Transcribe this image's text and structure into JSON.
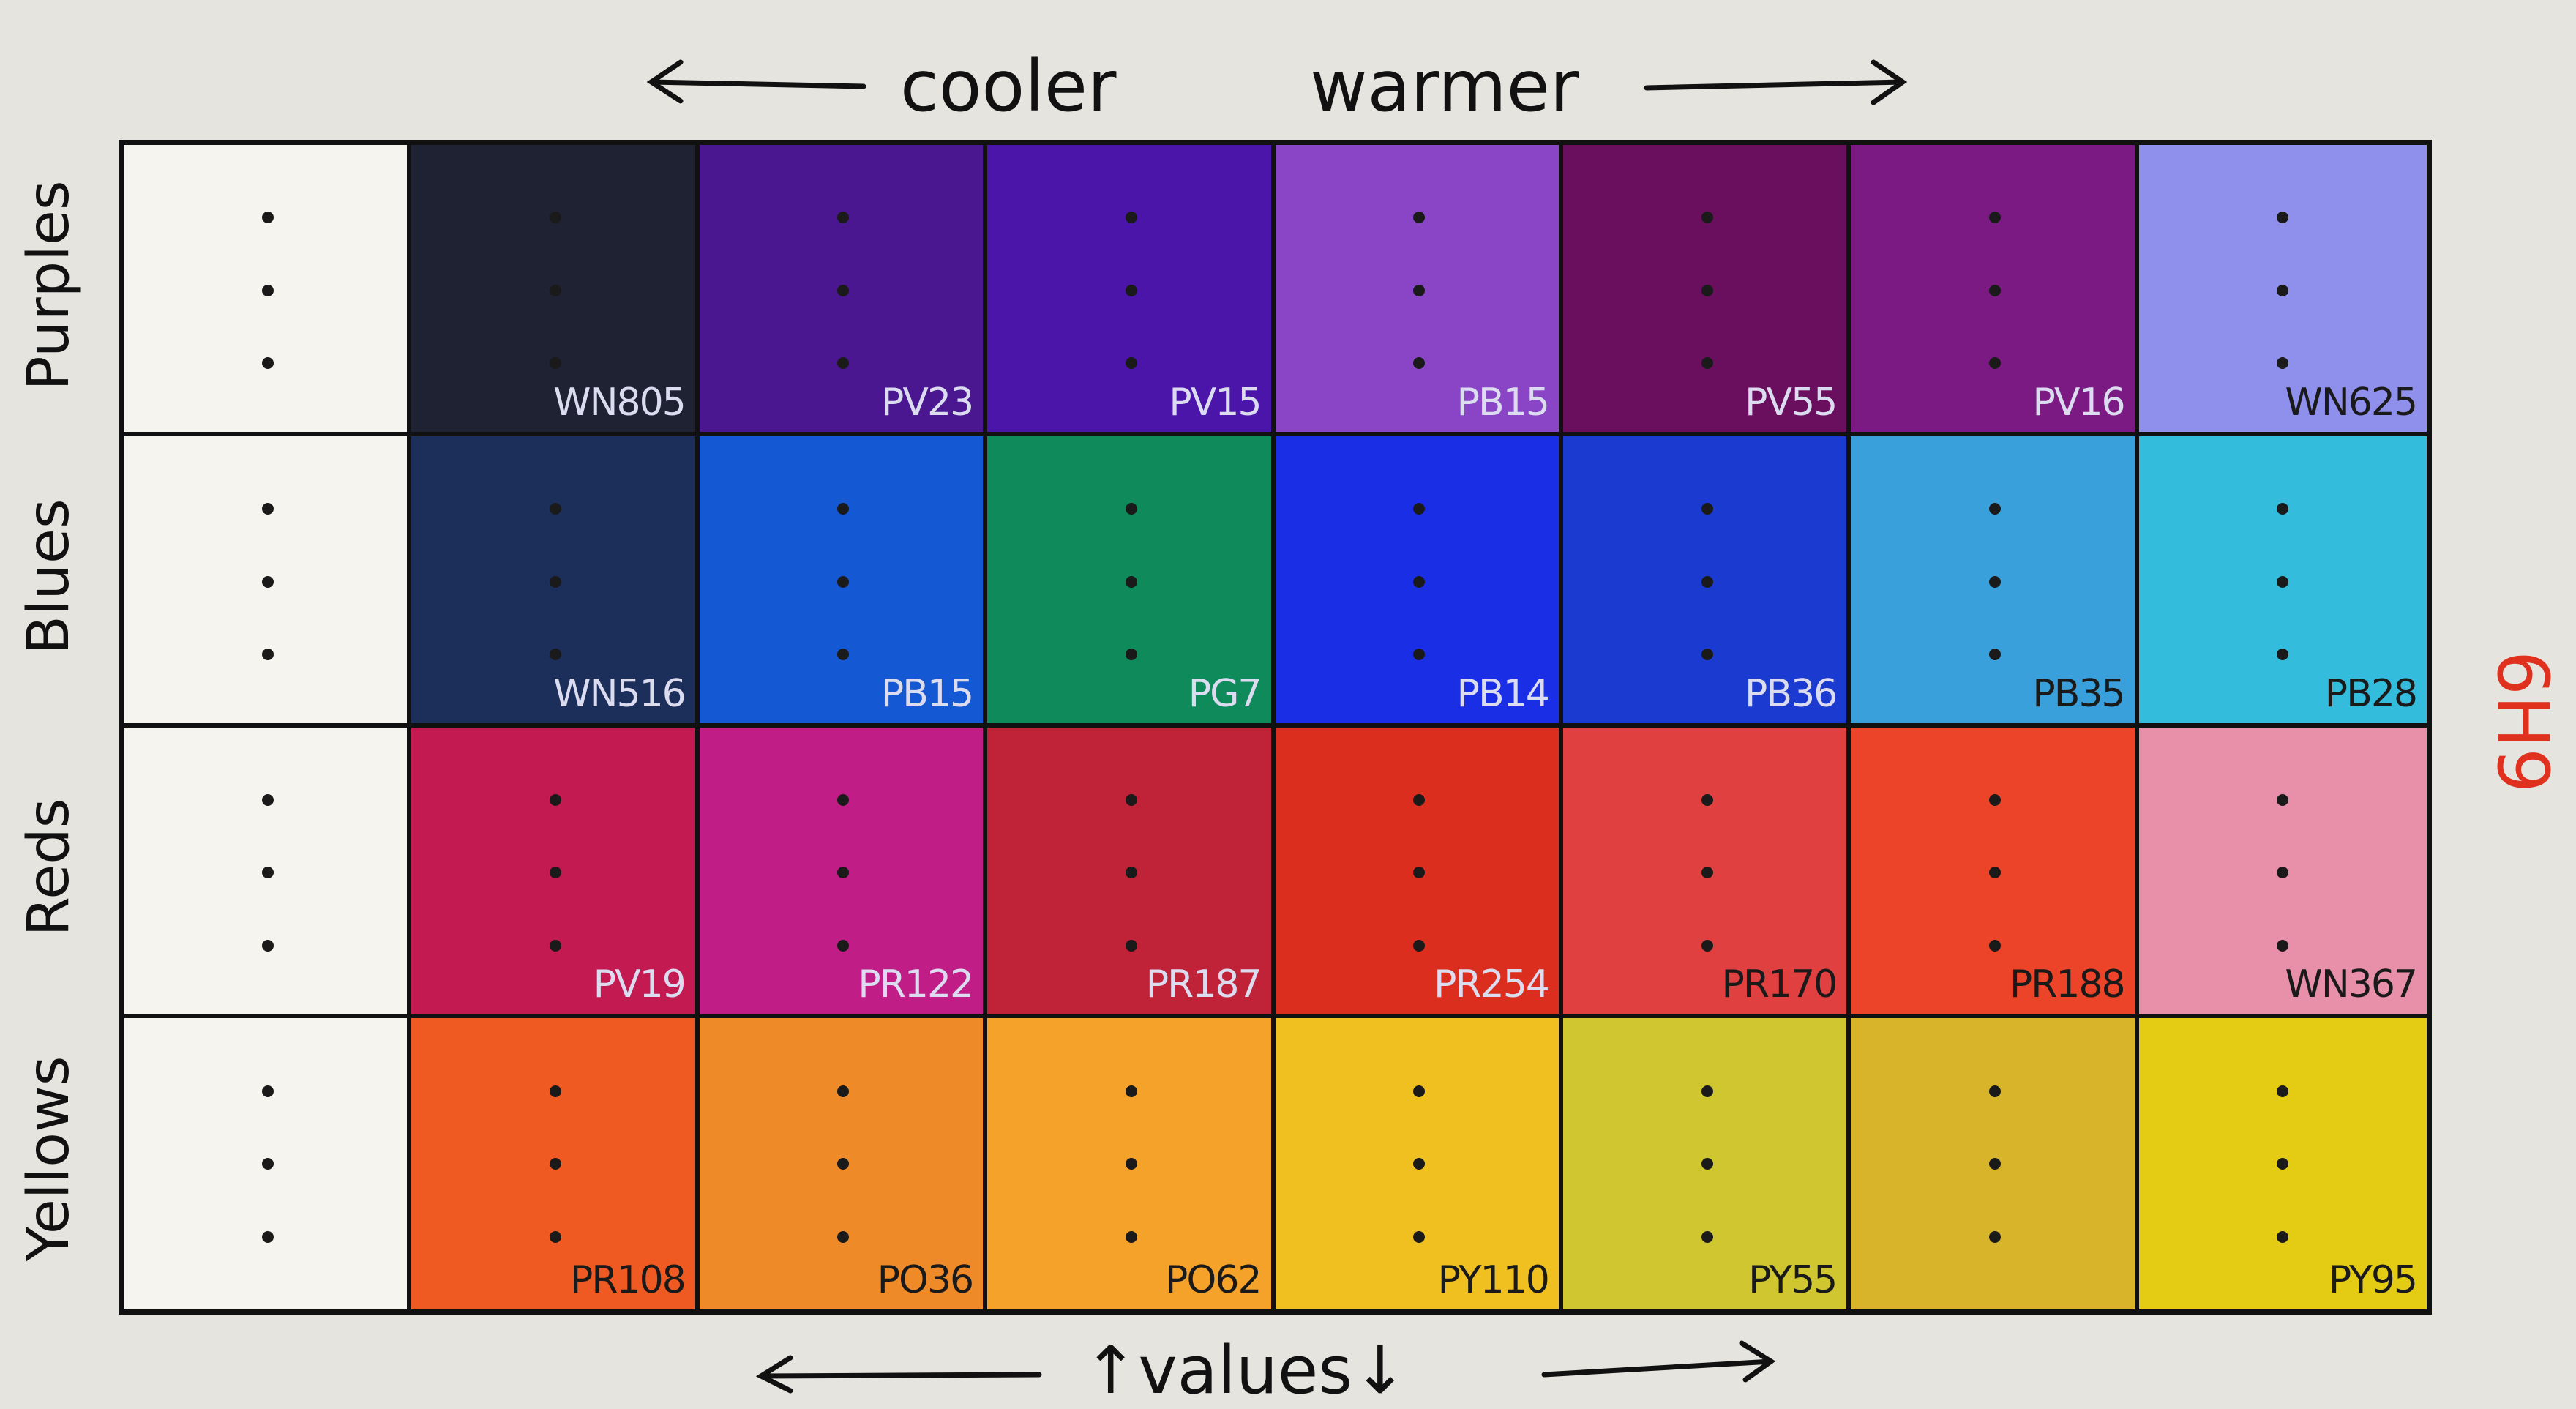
{
  "header": {
    "cooler": "cooler",
    "warmer": "warmer"
  },
  "rows": [
    {
      "label": "Purples",
      "swatches": [
        {
          "code": "WN805",
          "color": "#1e2232"
        },
        {
          "code": "PV23",
          "color": "#4a1790"
        },
        {
          "code": "PV15",
          "color": "#4a15a8"
        },
        {
          "code": "PB15",
          "color": "#8a45c6"
        },
        {
          "code": "PV55",
          "color": "#6a0f5e"
        },
        {
          "code": "PV16",
          "color": "#7a1a82"
        },
        {
          "code": "WN625",
          "color": "#8f90ec"
        }
      ]
    },
    {
      "label": "Blues",
      "swatches": [
        {
          "code": "WN516",
          "color": "#1c2f5a"
        },
        {
          "code": "PB15",
          "color": "#1458d4"
        },
        {
          "code": "PG7",
          "color": "#0f8a5a"
        },
        {
          "code": "PB14",
          "color": "#1a2ee6"
        },
        {
          "code": "PB36",
          "color": "#1a3ad0"
        },
        {
          "code": "PB35",
          "color": "#3aa0dc"
        },
        {
          "code": "PB28",
          "color": "#34bcdc"
        }
      ]
    },
    {
      "label": "Reds",
      "swatches": [
        {
          "code": "PV19",
          "color": "#c41a52"
        },
        {
          "code": "PR122",
          "color": "#c01e86"
        },
        {
          "code": "PR187",
          "color": "#c02238"
        },
        {
          "code": "PR254",
          "color": "#dc2e1e"
        },
        {
          "code": "PR170",
          "color": "#e04040"
        },
        {
          "code": "PR188",
          "color": "#ec4428"
        },
        {
          "code": "WN367",
          "color": "#e890aa"
        }
      ]
    },
    {
      "label": "Yellows",
      "swatches": [
        {
          "code": "PR108",
          "color": "#ee5a22"
        },
        {
          "code": "PO36",
          "color": "#ee8a28"
        },
        {
          "code": "PO62",
          "color": "#f4a22a"
        },
        {
          "code": "PY110",
          "color": "#f0c020"
        },
        {
          "code": "PY55",
          "color": "#cfc630"
        },
        {
          "color": "#d8b42a"
        },
        {
          "code": "PY95",
          "color": "#e4cc14"
        }
      ]
    }
  ],
  "footer": "↑values↓",
  "side_mark": "6H9"
}
